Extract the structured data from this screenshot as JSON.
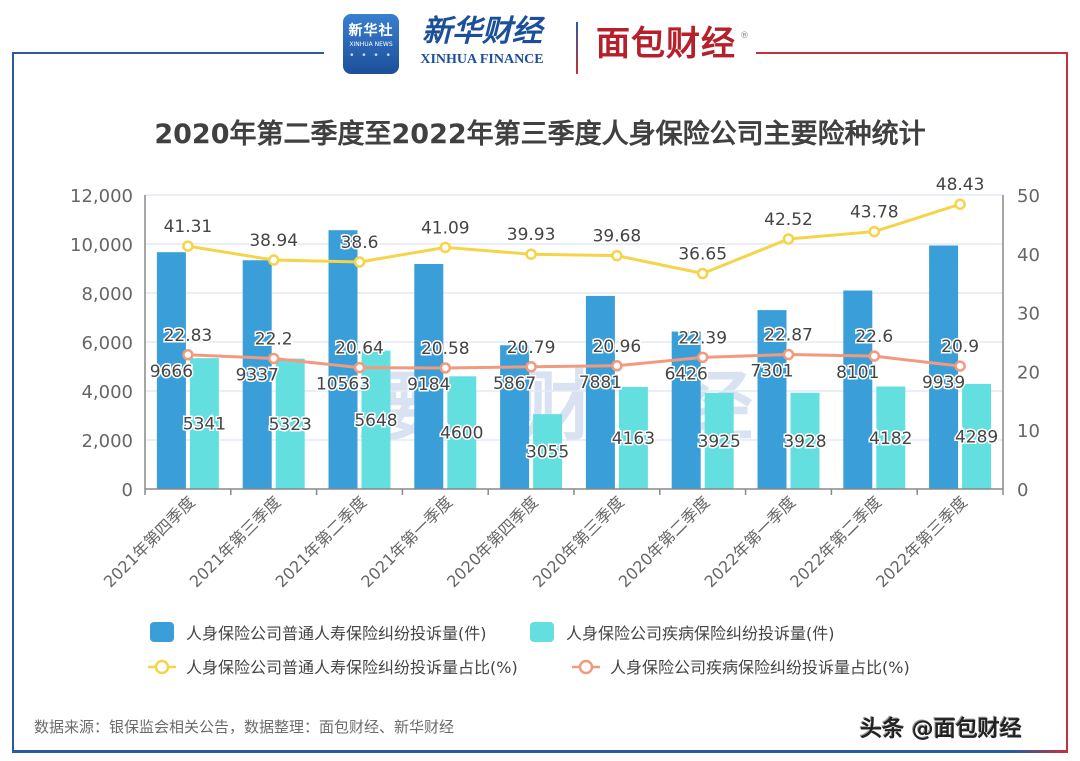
{
  "header": {
    "logo_xinhua_news": {
      "line1": "新华社",
      "line2": "XINHUA NEWS",
      "dots": "• • • •"
    },
    "logo_xinhua_finance": {
      "cn": "新华财经",
      "en": "XINHUA FINANCE"
    },
    "logo_mianbao": {
      "text": "面包财经",
      "reg": "®"
    }
  },
  "colors": {
    "bar_life": "#3a9fd8",
    "bar_disease": "#63dfe0",
    "line_life": "#f5d44a",
    "line_disease": "#f29a7e",
    "axis_text": "#666666",
    "grid": "#e3e9f4",
    "frame_left": "#2a5aa0",
    "frame_right": "#c7303a"
  },
  "chart_data": {
    "type": "bar",
    "title": "2020年第二季度至2022年第三季度人身保险公司主要险种统计",
    "categories": [
      "2021年第四季度",
      "2021年第三季度",
      "2021年第二季度",
      "2021年第一季度",
      "2020年第四季度",
      "2020年第三季度",
      "2020年第二季度",
      "2022年第一季度",
      "2022年第二季度",
      "2022年第三季度"
    ],
    "series": [
      {
        "name": "人身保险公司普通人寿保险纠纷投诉量(件)",
        "type": "bar",
        "axis": "left",
        "values": [
          9666,
          9337,
          10563,
          9184,
          5867,
          7881,
          6426,
          7301,
          8101,
          9939
        ]
      },
      {
        "name": "人身保险公司疾病保险纠纷投诉量(件)",
        "type": "bar",
        "axis": "left",
        "values": [
          5341,
          5323,
          5648,
          4600,
          3055,
          4163,
          3925,
          3928,
          4182,
          4289
        ]
      },
      {
        "name": "人身保险公司普通人寿保险纠纷投诉量占比(%)",
        "type": "line",
        "axis": "right",
        "values": [
          41.31,
          38.94,
          38.6,
          41.09,
          39.93,
          39.68,
          36.65,
          42.52,
          43.78,
          48.43
        ]
      },
      {
        "name": "人身保险公司疾病保险纠纷投诉量占比(%)",
        "type": "line",
        "axis": "right",
        "values": [
          22.83,
          22.2,
          20.64,
          20.58,
          20.79,
          20.96,
          22.39,
          22.87,
          22.6,
          20.9
        ]
      }
    ],
    "bar_labels": [
      [
        "9666",
        "9337",
        "10563",
        "9184",
        "5867",
        "7881",
        "6426",
        "7301",
        "8101",
        "9939"
      ],
      [
        "5341",
        "5323",
        "5648",
        "4600",
        "3055",
        "4163",
        "3925",
        "3928",
        "4182",
        "4289"
      ]
    ],
    "line_labels": [
      [
        "41.31",
        "38.94",
        "38.6",
        "41.09",
        "39.93",
        "39.68",
        "36.65",
        "42.52",
        "43.78",
        "48.43"
      ],
      [
        "22.83",
        "22.2",
        "20.64",
        "20.58",
        "20.79",
        "20.96",
        "22.39",
        "22.87",
        "22.6",
        "20.9"
      ]
    ],
    "y_left": {
      "min": 0,
      "max": 12000,
      "ticks": [
        "0",
        "2,000",
        "4,000",
        "6,000",
        "8,000",
        "10,000",
        "12,000"
      ]
    },
    "y_right": {
      "min": 0,
      "max": 50,
      "ticks": [
        "0",
        "10",
        "20",
        "30",
        "40",
        "50"
      ]
    },
    "xlabel": "",
    "ylabel": "",
    "grid": true,
    "legend_position": "bottom"
  },
  "legend": [
    "人身保险公司普通人寿保险纠纷投诉量(件)",
    "人身保险公司疾病保险纠纷投诉量(件)",
    "人身保险公司普通人寿保险纠纷投诉量占比(%)",
    "人身保险公司疾病保险纠纷投诉量占比(%)"
  ],
  "watermark": "腰 财 经",
  "footer": {
    "source": "数据来源：银保监会相关公告，数据整理：面包财经、新华财经",
    "brand": "头条 @面包财经"
  }
}
